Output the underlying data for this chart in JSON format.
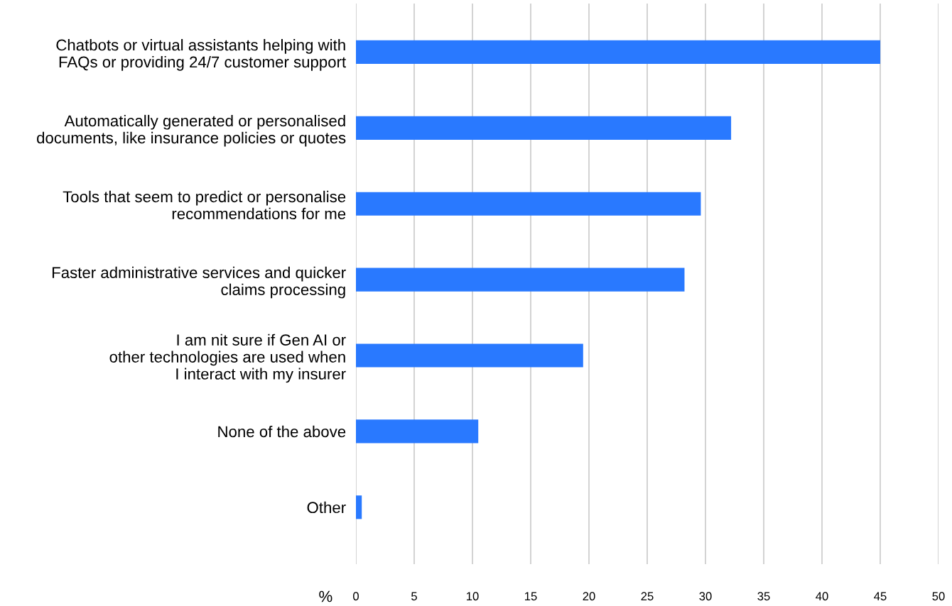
{
  "chart_data": {
    "type": "bar",
    "orientation": "horizontal",
    "xlabel": "%",
    "categories": [
      "Chatbots or virtual assistants helping with\nFAQs or providing 24/7 customer support",
      "Automatically generated or personalised\ndocuments, like insurance policies or quotes",
      "Tools that seem to predict or personalise\nrecommendations for me",
      "Faster administrative services and quicker\nclaims processing",
      "I am nit sure if Gen AI or\nother technologies are used when\nI interact with my insurer",
      "None of the above",
      "Other"
    ],
    "values": [
      45,
      32.2,
      29.6,
      28.2,
      19.5,
      10.5,
      0.5
    ],
    "color": "#2979ff",
    "xlim": [
      0,
      50
    ],
    "xticks": [
      0,
      5,
      10,
      15,
      20,
      25,
      30,
      35,
      40,
      45,
      50
    ],
    "grid": "x"
  }
}
